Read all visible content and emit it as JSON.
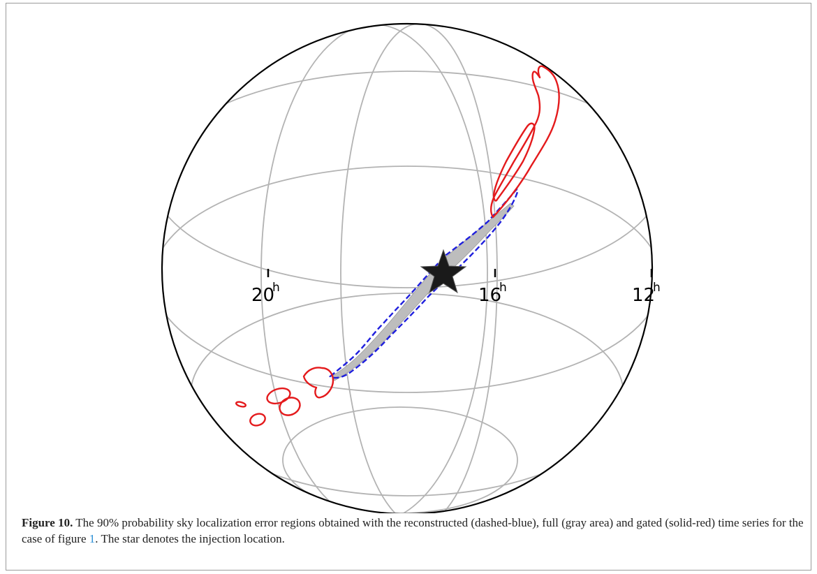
{
  "figure": {
    "label": "Figure 10.",
    "caption_before_ref": " The 90% probability sky localization error regions obtained with the reconstructed (dashed-blue), full (gray area) and gated (solid-red) time series for the case of figure ",
    "ref": "1",
    "caption_after_ref": ". The star denotes the injection location."
  },
  "chart_data": {
    "type": "sky-map",
    "projection": "globe (orthographic)",
    "ra_tick_labels": [
      {
        "value": "20",
        "unit": "h"
      },
      {
        "value": "16",
        "unit": "h"
      },
      {
        "value": "12",
        "unit": "h"
      }
    ],
    "regions": [
      {
        "method": "reconstructed",
        "style": "dashed",
        "color": "#1f1fdd"
      },
      {
        "method": "full",
        "style": "filled",
        "color": "#bdbdbd"
      },
      {
        "method": "gated",
        "style": "solid",
        "color": "#e41a1c"
      }
    ],
    "injection_marker": {
      "shape": "star",
      "color": "#1a1a1a"
    },
    "colors": {
      "grid": "#b3b3b3",
      "outline": "#000000"
    }
  }
}
